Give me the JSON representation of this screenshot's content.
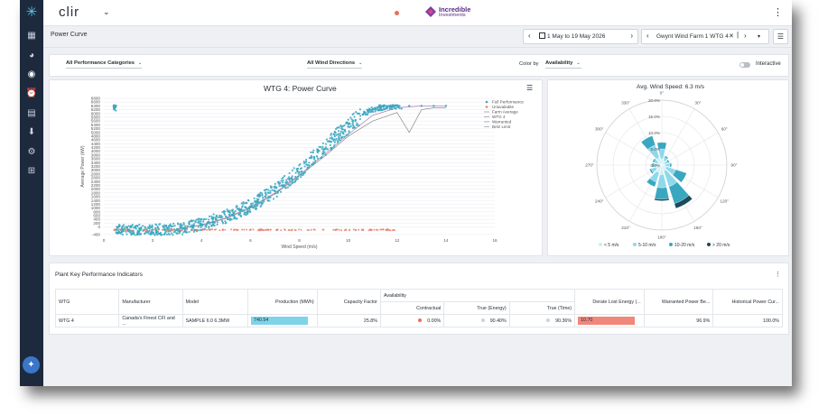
{
  "app": {
    "name": "clir",
    "brand_name": "Incredible",
    "brand_sub": "Investments"
  },
  "sidebar": {
    "items": [
      "logo-icon",
      "dashboard-icon",
      "pie-chart-icon",
      "eye-icon",
      "alarm-icon",
      "report-icon",
      "download-icon",
      "settings-icon",
      "robot-icon"
    ]
  },
  "header": {
    "page_title": "Power Curve",
    "date_range": "1 May to 19 May 2026",
    "asset": "Gwynt Wind Farm 1 WTG 4"
  },
  "filters": {
    "categories": "All Performance Categories",
    "directions": "All Wind Directions",
    "color_by_label": "Color by",
    "color_by_value": "Availability",
    "interactive_label": "Interactive"
  },
  "colors": {
    "accent": "#3aa7c0",
    "brand": "#5a2d82",
    "sidebar": "#1d2a3e",
    "unavailable": "#e8836e",
    "derate": "#f0877a"
  },
  "chart_data": [
    {
      "type": "scatter",
      "title": "WTG 4: Power Curve",
      "xlabel": "Wind Speed (m/s)",
      "ylabel": "Average Power (kW)",
      "xlim": [
        0,
        16
      ],
      "ylim": [
        -400,
        6800
      ],
      "x_ticks": [
        "0",
        "2",
        "4",
        "6",
        "8",
        "10",
        "12",
        "14",
        "16"
      ],
      "y_ticks": [
        "-400",
        "0",
        "200",
        "400",
        "600",
        "800",
        "1000",
        "1200",
        "1400",
        "1600",
        "1800",
        "2000",
        "2200",
        "2400",
        "2600",
        "2800",
        "3000",
        "3200",
        "3400",
        "3600",
        "3800",
        "4000",
        "4200",
        "4400",
        "4600",
        "4800",
        "5000",
        "5200",
        "5400",
        "5600",
        "5800",
        "6000",
        "6200",
        "6400",
        "6600",
        "6800"
      ],
      "legend_position": "right",
      "legend": [
        "Full Performance",
        "Unavailable",
        "Farm Average",
        "WTG 4",
        "Warranted",
        "Betz Limit"
      ],
      "series": [
        {
          "name": "Full Performance",
          "color": "#3aa7c0",
          "x": [
            0.5,
            1,
            1.5,
            2,
            2.5,
            3,
            3.3,
            3.6,
            4,
            4.3,
            4.6,
            5,
            5.3,
            5.6,
            6,
            6.3,
            6.6,
            7,
            7.3,
            7.6,
            8,
            8.3,
            8.6,
            9,
            9.3,
            9.6,
            10,
            10.3,
            10.6,
            11,
            11.3,
            11.6,
            12,
            12.5,
            13,
            13.5,
            14
          ],
          "y": [
            -150,
            -150,
            -150,
            -140,
            -130,
            -110,
            -60,
            30,
            150,
            260,
            400,
            550,
            700,
            900,
            1100,
            1350,
            1600,
            1900,
            2200,
            2550,
            2900,
            3300,
            3700,
            4100,
            4500,
            4900,
            5300,
            5650,
            5950,
            6200,
            6300,
            6350,
            6400,
            6400,
            6400,
            6400,
            6400
          ]
        },
        {
          "name": "Unavailable",
          "color": "#e8836e",
          "x": [
            0.5,
            1,
            2,
            3,
            4,
            5,
            6,
            7,
            8,
            9,
            10,
            11,
            12,
            13,
            14
          ],
          "y": [
            -150,
            -150,
            -150,
            -150,
            -150,
            -150,
            -150,
            -140,
            -150,
            -150,
            -150,
            -150,
            -140,
            -150,
            -150
          ]
        },
        {
          "name": "Farm Average",
          "color": "#888888",
          "x": [
            3,
            4,
            5,
            6,
            7,
            8,
            9,
            10,
            11,
            12,
            12.5,
            13,
            13.5,
            14
          ],
          "y": [
            -100,
            100,
            450,
            1000,
            1750,
            2700,
            3700,
            4800,
            5600,
            6050,
            5000,
            6200,
            6300,
            6300
          ]
        },
        {
          "name": "WTG 4",
          "color": "#b07bb5",
          "x": [
            3,
            4,
            5,
            6,
            7,
            8,
            9,
            10,
            11,
            12,
            13,
            14
          ],
          "y": [
            -100,
            120,
            480,
            1050,
            1800,
            2750,
            3800,
            4900,
            5900,
            6300,
            6400,
            6400
          ]
        }
      ]
    },
    {
      "type": "wind-rose",
      "title": "Avg. Wind Speed: 6.3 m/s",
      "angle_labels": [
        "0°",
        "30°",
        "60°",
        "90°",
        "120°",
        "150°",
        "180°",
        "210°",
        "240°",
        "270°",
        "300°",
        "330°"
      ],
      "radial_labels": [
        "0.0%",
        "5.0%",
        "10.0%",
        "15.0%",
        "20.0%"
      ],
      "legend": [
        "< 5 m/s",
        "5-10 m/s",
        "10-20 m/s",
        "> 20 m/s"
      ],
      "legend_colors": [
        "#c9eef6",
        "#8fd8ea",
        "#3aa7c0",
        "#1b4a5a"
      ],
      "directions": [
        0,
        30,
        60,
        90,
        120,
        150,
        180,
        210,
        240,
        270,
        300,
        330
      ],
      "bins": [
        [
          2.0,
          1.5,
          1.0,
          1.0,
          1.5,
          2.0,
          3.0,
          2.5,
          2.0,
          1.5,
          1.5,
          2.5
        ],
        [
          3.0,
          1.0,
          1.0,
          1.5,
          3.0,
          5.0,
          4.0,
          3.0,
          1.5,
          1.0,
          1.0,
          4.0
        ],
        [
          2.0,
          0.5,
          0.5,
          0.5,
          3.5,
          5.5,
          3.5,
          1.5,
          0.5,
          0.5,
          0.5,
          3.0
        ],
        [
          0.0,
          0.0,
          0.0,
          0.0,
          0.0,
          1.5,
          0.5,
          0.0,
          0.0,
          0.0,
          0.0,
          0.0
        ]
      ]
    }
  ],
  "kpi": {
    "title": "Plant Key Performance Indicators",
    "group_header": "Availability",
    "headers": [
      "WTG",
      "Manufacturer",
      "Model",
      "Production (MWh)",
      "Capacity Factor",
      "Contractual",
      "True (Energy)",
      "True (Time)",
      "Derate Lost Energy (...",
      "Warranted Power Be...",
      "Historical Power Cur..."
    ],
    "row": {
      "wtg": "WTG 4",
      "manufacturer": "Canada's Finest CFI and ...",
      "model": "SAMPLE 6.0 6.3MW",
      "production": "740.54",
      "capacity_factor": "25.8%",
      "contractual": "0.00%",
      "true_energy": "90.40%",
      "true_time": "90.36%",
      "derate": "10.70",
      "warranted": "96.9%",
      "historical": "100.0%"
    }
  }
}
